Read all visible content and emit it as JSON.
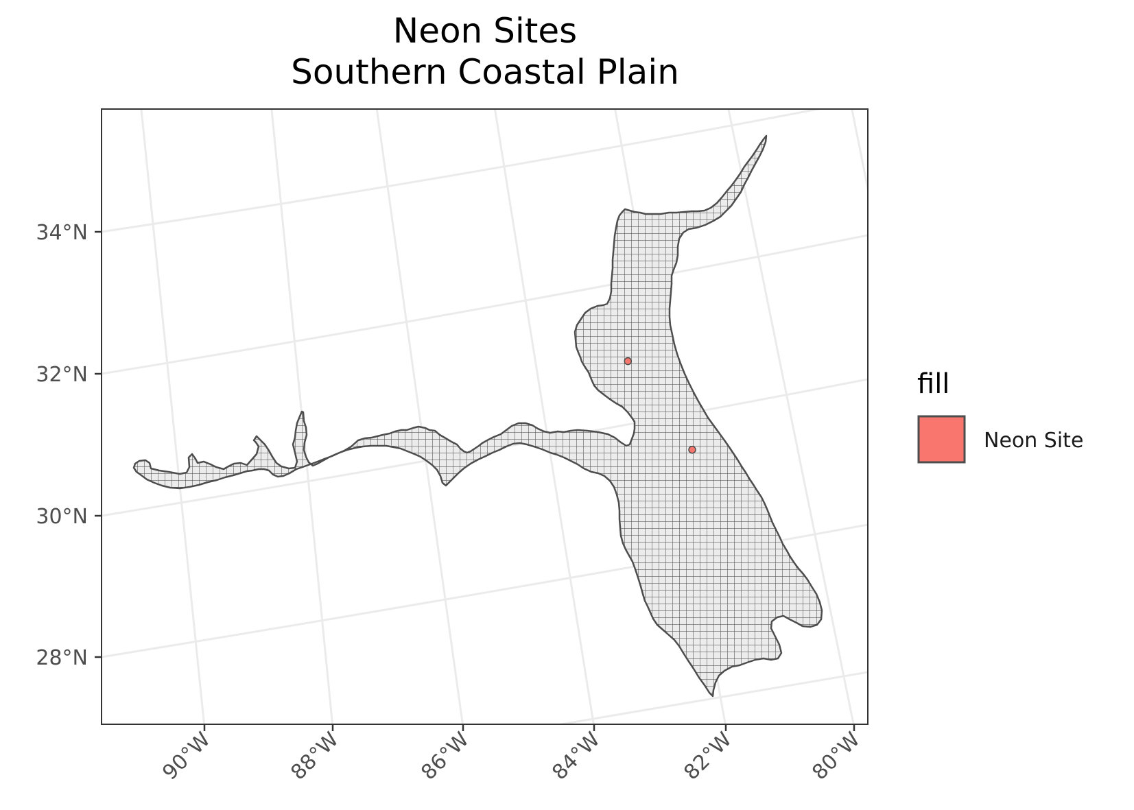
{
  "title": {
    "line1": "Neon Sites",
    "line2": "Southern Coastal Plain"
  },
  "axes": {
    "lat_labels": [
      "34°N",
      "32°N",
      "30°N",
      "28°N"
    ],
    "lon_labels": [
      "90°W",
      "88°W",
      "86°W",
      "84°W",
      "82°W",
      "80°W"
    ]
  },
  "legend": {
    "title": "fill",
    "items": [
      {
        "label": "Neon Site",
        "color": "#f8766d"
      }
    ]
  },
  "colors": {
    "region_fill": "#ececec",
    "region_stroke": "#4d4d4d",
    "graticule": "#ebebeb",
    "panel_border": "#333333",
    "site_point": "#f8766d"
  },
  "sites": [
    {
      "name": "Neon Site",
      "lon": -82.7,
      "lat": 30.95
    },
    {
      "name": "Neon Site",
      "lon": -81.95,
      "lat": 29.55
    }
  ]
}
